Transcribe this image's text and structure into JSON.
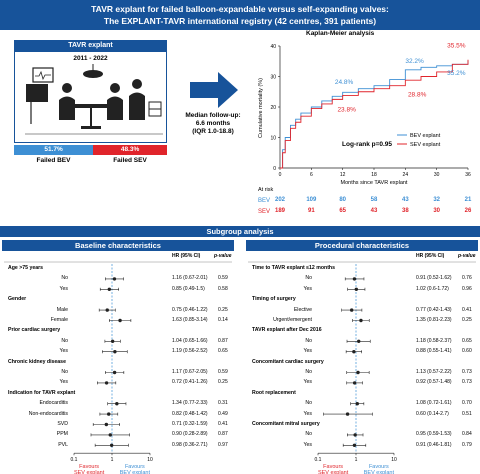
{
  "header": {
    "line1": "TAVR explant for failed balloon-expandable versus self-expanding valves:",
    "line2": "The EXPLANT-TAVR international registry (42 centres, 391 patients)"
  },
  "explant_box": {
    "title": "TAVR explant",
    "years": "2011 - 2022",
    "bev_pct": "51.7%",
    "sev_pct": "48.3%",
    "bev_label": "Failed BEV",
    "sev_label": "Failed SEV",
    "bev_fraction": 0.517
  },
  "followup": {
    "line1": "Median follow-up:",
    "line2": "6.6 months",
    "line3": "(IQR 1.0-18.8)"
  },
  "colors": {
    "bev": "#3d8fd4",
    "sev": "#e0242b",
    "navy": "#17539a"
  },
  "km": {
    "title": "Kaplan-Meier analysis",
    "ylabel": "Cumulative mortality (%)",
    "xlabel": "Months since TAVR explant",
    "logrank": "Log-rank p=0.95",
    "legend_bev": "BEV explant",
    "legend_sev": "SEV explant",
    "yticks": [
      "0",
      "10",
      "20",
      "30",
      "40"
    ],
    "xticks": [
      "0",
      "6",
      "12",
      "18",
      "24",
      "30",
      "36"
    ],
    "annotations": {
      "bev_12": "24.8%",
      "sev_12": "23.8%",
      "bev_24": "32.2%",
      "sev_24": "28.8%",
      "sev_36": "35.5%",
      "bev_36": "35.2%"
    },
    "at_risk_label": "At risk",
    "bev_label": "BEV",
    "sev_label": "SEV",
    "bev_risk": [
      "202",
      "109",
      "80",
      "58",
      "43",
      "32",
      "21"
    ],
    "sev_risk": [
      "189",
      "91",
      "65",
      "43",
      "38",
      "30",
      "26"
    ]
  },
  "chart_data": {
    "type": "line",
    "title": "Kaplan-Meier analysis",
    "xlabel": "Months since TAVR explant",
    "ylabel": "Cumulative mortality (%)",
    "xlim": [
      0,
      36
    ],
    "ylim": [
      0,
      40
    ],
    "series": [
      {
        "name": "BEV explant",
        "x": [
          0,
          0.5,
          1,
          2,
          3,
          4,
          6,
          8,
          10,
          12,
          15,
          18,
          21,
          24,
          27,
          30,
          33,
          36
        ],
        "y": [
          0,
          6,
          10,
          14,
          16,
          18,
          20,
          22,
          23.5,
          24.8,
          26,
          27,
          29,
          32.2,
          33,
          33.5,
          34,
          35.2
        ]
      },
      {
        "name": "SEV explant",
        "x": [
          0,
          0.5,
          1,
          2,
          3,
          4,
          6,
          8,
          10,
          12,
          15,
          18,
          21,
          24,
          27,
          30,
          33,
          36
        ],
        "y": [
          0,
          5,
          9,
          13,
          15,
          17,
          19.5,
          21,
          22.5,
          23.8,
          25,
          26,
          27,
          28.8,
          30,
          31.5,
          34,
          35.5
        ]
      }
    ]
  },
  "subgroup": {
    "title": "Subgroup analysis",
    "left_title": "Baseline characteristics",
    "right_title": "Procedural characteristics",
    "hr_header": "HR (95% CI)",
    "p_header": "p-value",
    "axis_ticks": [
      "0.1",
      "1",
      "10"
    ],
    "favours_sev_1": "Favours",
    "favours_sev_2": "SEV explant",
    "favours_bev_1": "Favours",
    "favours_bev_2": "BEV explant",
    "left_rows": [
      {
        "label": "Age >75 years",
        "head": true
      },
      {
        "label": "No",
        "hr": 1.16,
        "lo": 0.67,
        "hi": 2.01,
        "text": "1.16 (0.67-2.01)",
        "p": "0.59"
      },
      {
        "label": "Yes",
        "hr": 0.85,
        "lo": 0.49,
        "hi": 1.5,
        "text": "0.85 (0.49-1.5)",
        "p": "0.58"
      },
      {
        "label": "Gender",
        "head": true
      },
      {
        "label": "Male",
        "hr": 0.75,
        "lo": 0.46,
        "hi": 1.22,
        "text": "0.75 (0.46-1.22)",
        "p": "0.25"
      },
      {
        "label": "Female",
        "hr": 1.63,
        "lo": 0.85,
        "hi": 3.14,
        "text": "1.63 (0.85-3.14)",
        "p": "0.14"
      },
      {
        "label": "Prior cardiac surgery",
        "head": true
      },
      {
        "label": "No",
        "hr": 1.04,
        "lo": 0.65,
        "hi": 1.66,
        "text": "1.04 (0.65-1.66)",
        "p": "0.87"
      },
      {
        "label": "Yes",
        "hr": 1.19,
        "lo": 0.56,
        "hi": 2.52,
        "text": "1.19 (0.56-2.52)",
        "p": "0.65"
      },
      {
        "label": "Chronic kidney disease",
        "head": true
      },
      {
        "label": "No",
        "hr": 1.17,
        "lo": 0.67,
        "hi": 2.05,
        "text": "1.17 (0.67-2.05)",
        "p": "0.59"
      },
      {
        "label": "Yes",
        "hr": 0.72,
        "lo": 0.41,
        "hi": 1.26,
        "text": "0.72 (0.41-1.26)",
        "p": "0.25"
      },
      {
        "label": "Indication for TAVR explant",
        "head": true
      },
      {
        "label": "Endocarditis",
        "hr": 1.34,
        "lo": 0.77,
        "hi": 2.33,
        "text": "1.34 (0.77-2.33)",
        "p": "0.31"
      },
      {
        "label": "Non-endocarditis",
        "hr": 0.82,
        "lo": 0.48,
        "hi": 1.42,
        "text": "0.82 (0.48-1.42)",
        "p": "0.49"
      },
      {
        "label": "SVD",
        "hr": 0.71,
        "lo": 0.32,
        "hi": 1.59,
        "text": "0.71 (0.32-1.59)",
        "p": "0.41"
      },
      {
        "label": "PPM",
        "hr": 0.9,
        "lo": 0.28,
        "hi": 2.89,
        "text": "0.90 (0.28-2.89)",
        "p": "0.87"
      },
      {
        "label": "PVL",
        "hr": 0.98,
        "lo": 0.36,
        "hi": 2.71,
        "text": "0.98 (0.36-2.71)",
        "p": "0.97"
      }
    ],
    "right_rows": [
      {
        "label": "Time to TAVR explant ≤12 months",
        "head": true
      },
      {
        "label": "No",
        "hr": 0.91,
        "lo": 0.52,
        "hi": 1.62,
        "text": "0.91 (0.52-1.62)",
        "p": "0.76"
      },
      {
        "label": "Yes",
        "hr": 1.02,
        "lo": 0.6,
        "hi": 1.72,
        "text": "1.02 (0.6-1.72)",
        "p": "0.96"
      },
      {
        "label": "Timing of surgery",
        "head": true
      },
      {
        "label": "Elective",
        "hr": 0.77,
        "lo": 0.42,
        "hi": 1.43,
        "text": "0.77 (0.42-1.43)",
        "p": "0.41"
      },
      {
        "label": "Urgent/emergent",
        "hr": 1.35,
        "lo": 0.81,
        "hi": 2.23,
        "text": "1.35 (0.81-2.23)",
        "p": "0.25"
      },
      {
        "label": "TAVR explant after Dec 2016",
        "head": true
      },
      {
        "label": "No",
        "hr": 1.18,
        "lo": 0.58,
        "hi": 2.37,
        "text": "1.18 (0.58-2.37)",
        "p": "0.65"
      },
      {
        "label": "Yes",
        "hr": 0.88,
        "lo": 0.55,
        "hi": 1.41,
        "text": "0.88 (0.55-1.41)",
        "p": "0.60"
      },
      {
        "label": "Concomitant cardiac surgery",
        "head": true
      },
      {
        "label": "No",
        "hr": 1.13,
        "lo": 0.57,
        "hi": 2.22,
        "text": "1.13 (0.57-2.22)",
        "p": "0.73"
      },
      {
        "label": "Yes",
        "hr": 0.92,
        "lo": 0.57,
        "hi": 1.48,
        "text": "0.92 (0.57-1.48)",
        "p": "0.73"
      },
      {
        "label": "Root replacement",
        "head": true
      },
      {
        "label": "No",
        "hr": 1.08,
        "lo": 0.72,
        "hi": 1.61,
        "text": "1.08 (0.72-1.61)",
        "p": "0.70"
      },
      {
        "label": "Yes",
        "hr": 0.6,
        "lo": 0.14,
        "hi": 2.7,
        "text": "0.60 (0.14-2.7)",
        "p": "0.51"
      },
      {
        "label": "Concomitant mitral surgery",
        "head": true
      },
      {
        "label": "No",
        "hr": 0.95,
        "lo": 0.59,
        "hi": 1.53,
        "text": "0.95 (0.59-1.53)",
        "p": "0.84"
      },
      {
        "label": "Yes",
        "hr": 0.91,
        "lo": 0.46,
        "hi": 1.81,
        "text": "0.91 (0.46-1.81)",
        "p": "0.79"
      }
    ]
  }
}
